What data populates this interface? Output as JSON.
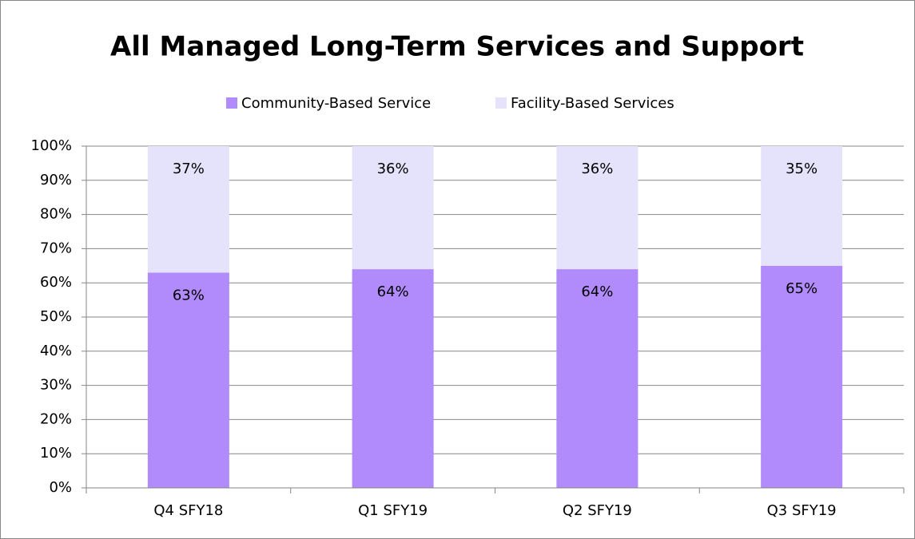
{
  "chart_data": {
    "type": "stacked_bar",
    "title": "All Managed Long-Term Services and Support",
    "categories": [
      "Q4 SFY18",
      "Q1 SFY19",
      "Q2 SFY19",
      "Q3 SFY19"
    ],
    "series": [
      {
        "name": "Community-Based Service",
        "color": "#b18afc",
        "values": [
          63,
          64,
          64,
          65
        ],
        "value_labels": [
          "63%",
          "64%",
          "64%",
          "65%"
        ]
      },
      {
        "name": "Facility-Based Services",
        "color": "#e5e3fc",
        "values": [
          37,
          36,
          36,
          35
        ],
        "value_labels": [
          "37%",
          "36%",
          "36%",
          "35%"
        ]
      }
    ],
    "ylim": [
      0,
      100
    ],
    "yticks": [
      {
        "value": 0,
        "label": "0%"
      },
      {
        "value": 10,
        "label": "10%"
      },
      {
        "value": 20,
        "label": "20%"
      },
      {
        "value": 30,
        "label": "30%"
      },
      {
        "value": 40,
        "label": "40%"
      },
      {
        "value": 50,
        "label": "50%"
      },
      {
        "value": 60,
        "label": "60%"
      },
      {
        "value": 70,
        "label": "70%"
      },
      {
        "value": 80,
        "label": "80%"
      },
      {
        "value": 90,
        "label": "90%"
      },
      {
        "value": 100,
        "label": "100%"
      }
    ],
    "grid": true,
    "legend": "top"
  }
}
